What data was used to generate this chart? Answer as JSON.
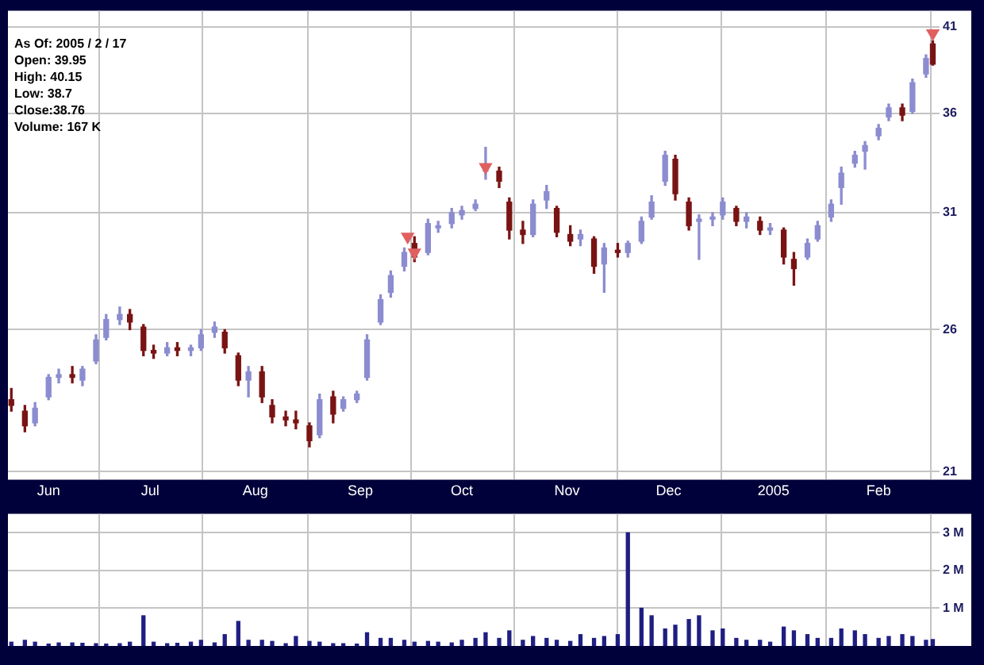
{
  "chart_data": [
    {
      "type": "candlestick",
      "log": true,
      "grid": true,
      "annotations": [
        "As Of: 2005 / 2 / 17",
        "Open: 39.95",
        "High: 40.15",
        "Low: 38.7",
        "Close:38.76",
        "Volume: 167 K"
      ],
      "xlim": [
        "2004-05-20",
        "2005-02-19"
      ],
      "xticks": [
        {
          "value": "2004-06-01",
          "label": "Jun"
        },
        {
          "value": "2004-07-01",
          "label": "Jul"
        },
        {
          "value": "2004-08-01",
          "label": "Aug"
        },
        {
          "value": "2004-09-01",
          "label": "Sep"
        },
        {
          "value": "2004-10-01",
          "label": "Oct"
        },
        {
          "value": "2004-11-01",
          "label": "Nov"
        },
        {
          "value": "2004-12-01",
          "label": "Dec"
        },
        {
          "value": "2005-01-01",
          "label": "2005"
        },
        {
          "value": "2005-02-01",
          "label": "Feb"
        }
      ],
      "ylim": [
        20.75,
        42
      ],
      "yticks": [
        21,
        26,
        31,
        36,
        41
      ],
      "x": [
        "2004-05-21",
        "2004-05-25",
        "2004-05-28",
        "2004-06-01",
        "2004-06-04",
        "2004-06-08",
        "2004-06-11",
        "2004-06-15",
        "2004-06-18",
        "2004-06-22",
        "2004-06-25",
        "2004-06-29",
        "2004-07-02",
        "2004-07-06",
        "2004-07-09",
        "2004-07-13",
        "2004-07-16",
        "2004-07-20",
        "2004-07-23",
        "2004-07-27",
        "2004-07-30",
        "2004-08-03",
        "2004-08-06",
        "2004-08-10",
        "2004-08-13",
        "2004-08-17",
        "2004-08-20",
        "2004-08-24",
        "2004-08-27",
        "2004-08-31",
        "2004-09-03",
        "2004-09-07",
        "2004-09-10",
        "2004-09-14",
        "2004-09-17",
        "2004-09-21",
        "2004-09-24",
        "2004-09-28",
        "2004-10-01",
        "2004-10-05",
        "2004-10-08",
        "2004-10-12",
        "2004-10-15",
        "2004-10-19",
        "2004-10-22",
        "2004-10-26",
        "2004-10-29",
        "2004-11-02",
        "2004-11-05",
        "2004-11-09",
        "2004-11-12",
        "2004-11-16",
        "2004-11-19",
        "2004-11-23",
        "2004-11-26",
        "2004-11-30",
        "2004-12-03",
        "2004-12-07",
        "2004-12-10",
        "2004-12-14",
        "2004-12-17",
        "2004-12-21",
        "2004-12-24",
        "2004-12-28",
        "2004-12-31",
        "2005-01-04",
        "2005-01-07",
        "2005-01-11",
        "2005-01-14",
        "2005-01-18",
        "2005-01-21",
        "2005-01-25",
        "2005-01-28",
        "2005-02-01",
        "2005-02-04",
        "2005-02-08",
        "2005-02-11",
        "2005-02-15",
        "2005-02-17"
      ],
      "ohlc": [
        [
          23.4,
          23.8,
          23.0,
          23.2
        ],
        [
          23.0,
          23.2,
          22.3,
          22.5
        ],
        [
          22.6,
          23.3,
          22.5,
          23.1
        ],
        [
          23.5,
          24.3,
          23.4,
          24.2
        ],
        [
          24.2,
          24.5,
          24.0,
          24.3
        ],
        [
          24.3,
          24.6,
          24.0,
          24.2
        ],
        [
          24.1,
          24.6,
          23.9,
          24.5
        ],
        [
          24.8,
          25.8,
          24.7,
          25.6
        ],
        [
          25.7,
          26.6,
          25.6,
          26.4
        ],
        [
          26.4,
          26.9,
          26.2,
          26.6
        ],
        [
          26.6,
          26.8,
          26.0,
          26.3
        ],
        [
          26.1,
          26.2,
          25.0,
          25.2
        ],
        [
          25.2,
          25.4,
          24.9,
          25.1
        ],
        [
          25.1,
          25.5,
          25.0,
          25.3
        ],
        [
          25.3,
          25.5,
          25.0,
          25.2
        ],
        [
          25.2,
          25.4,
          25.0,
          25.3
        ],
        [
          25.3,
          26.0,
          25.2,
          25.8
        ],
        [
          25.9,
          26.3,
          25.7,
          26.1
        ],
        [
          25.9,
          26.0,
          25.1,
          25.3
        ],
        [
          25.0,
          25.1,
          23.9,
          24.1
        ],
        [
          24.1,
          24.6,
          23.5,
          24.4
        ],
        [
          24.4,
          24.6,
          23.3,
          23.5
        ],
        [
          23.2,
          23.4,
          22.6,
          22.8
        ],
        [
          22.8,
          23.0,
          22.5,
          22.7
        ],
        [
          22.7,
          23.0,
          22.4,
          22.6
        ],
        [
          22.5,
          22.6,
          21.8,
          22.0
        ],
        [
          22.2,
          23.6,
          22.1,
          23.4
        ],
        [
          23.5,
          23.7,
          22.6,
          22.9
        ],
        [
          23.1,
          23.5,
          23.0,
          23.4
        ],
        [
          23.4,
          23.7,
          23.3,
          23.6
        ],
        [
          24.2,
          25.8,
          24.1,
          25.6
        ],
        [
          26.3,
          27.4,
          26.2,
          27.2
        ],
        [
          27.5,
          28.4,
          27.3,
          28.2
        ],
        [
          28.6,
          29.4,
          28.4,
          29.2
        ],
        [
          29.6,
          29.9,
          28.8,
          29.0
        ],
        [
          29.2,
          30.7,
          29.1,
          30.5
        ],
        [
          30.3,
          30.6,
          30.1,
          30.4
        ],
        [
          30.5,
          31.2,
          30.3,
          31.0
        ],
        [
          30.9,
          31.3,
          30.7,
          31.1
        ],
        [
          31.2,
          31.6,
          31.1,
          31.4
        ],
        [
          33.0,
          34.2,
          32.6,
          33.2
        ],
        [
          33.0,
          33.2,
          32.2,
          32.5
        ],
        [
          31.5,
          31.7,
          29.8,
          30.2
        ],
        [
          30.2,
          30.6,
          29.6,
          30.0
        ],
        [
          30.0,
          31.6,
          29.9,
          31.4
        ],
        [
          31.6,
          32.3,
          31.2,
          32.0
        ],
        [
          31.2,
          31.3,
          29.9,
          30.1
        ],
        [
          30.0,
          30.4,
          29.5,
          29.7
        ],
        [
          29.8,
          30.2,
          29.5,
          30.0
        ],
        [
          29.8,
          29.9,
          28.3,
          28.6
        ],
        [
          28.7,
          29.6,
          27.5,
          29.4
        ],
        [
          29.3,
          29.6,
          29.0,
          29.2
        ],
        [
          29.2,
          29.7,
          29.0,
          29.6
        ],
        [
          29.7,
          30.8,
          29.6,
          30.6
        ],
        [
          30.8,
          31.8,
          30.7,
          31.5
        ],
        [
          32.5,
          34.0,
          32.3,
          33.8
        ],
        [
          33.6,
          33.8,
          31.6,
          31.9
        ],
        [
          31.5,
          31.7,
          30.2,
          30.4
        ],
        [
          30.6,
          30.9,
          28.9,
          30.7
        ],
        [
          30.7,
          31.0,
          30.4,
          30.8
        ],
        [
          30.9,
          31.7,
          30.7,
          31.5
        ],
        [
          31.2,
          31.3,
          30.4,
          30.6
        ],
        [
          30.6,
          31.0,
          30.3,
          30.8
        ],
        [
          30.6,
          30.8,
          30.0,
          30.2
        ],
        [
          30.2,
          30.5,
          30.0,
          30.3
        ],
        [
          30.2,
          30.3,
          28.7,
          29.0
        ],
        [
          28.9,
          29.2,
          27.8,
          28.5
        ],
        [
          29.0,
          29.8,
          28.9,
          29.6
        ],
        [
          29.8,
          30.6,
          29.7,
          30.4
        ],
        [
          30.8,
          31.6,
          30.6,
          31.4
        ],
        [
          32.2,
          33.2,
          31.4,
          32.9
        ],
        [
          33.4,
          34.0,
          33.2,
          33.8
        ],
        [
          34.0,
          34.5,
          33.1,
          34.3
        ],
        [
          34.8,
          35.4,
          34.6,
          35.2
        ],
        [
          35.8,
          36.5,
          35.6,
          36.3
        ],
        [
          36.3,
          36.5,
          35.6,
          35.9
        ],
        [
          36.1,
          37.9,
          36.0,
          37.7
        ],
        [
          38.2,
          39.3,
          38.0,
          39.1
        ],
        [
          39.95,
          40.15,
          38.7,
          38.76
        ]
      ],
      "colors": [
        "#7a1414",
        "#7a1414",
        "#8c8cd0",
        "#8c8cd0",
        "#8c8cd0",
        "#7a1414",
        "#8c8cd0",
        "#8c8cd0",
        "#8c8cd0",
        "#8c8cd0",
        "#7a1414",
        "#7a1414",
        "#7a1414",
        "#8c8cd0",
        "#7a1414",
        "#8c8cd0",
        "#8c8cd0",
        "#8c8cd0",
        "#7a1414",
        "#7a1414",
        "#8c8cd0",
        "#7a1414",
        "#7a1414",
        "#7a1414",
        "#7a1414",
        "#7a1414",
        "#8c8cd0",
        "#7a1414",
        "#8c8cd0",
        "#8c8cd0",
        "#8c8cd0",
        "#8c8cd0",
        "#8c8cd0",
        "#8c8cd0",
        "#7a1414",
        "#8c8cd0",
        "#8c8cd0",
        "#8c8cd0",
        "#8c8cd0",
        "#8c8cd0",
        "#8c8cd0",
        "#7a1414",
        "#7a1414",
        "#7a1414",
        "#8c8cd0",
        "#8c8cd0",
        "#7a1414",
        "#7a1414",
        "#8c8cd0",
        "#7a1414",
        "#8c8cd0",
        "#7a1414",
        "#8c8cd0",
        "#8c8cd0",
        "#8c8cd0",
        "#8c8cd0",
        "#7a1414",
        "#7a1414",
        "#8c8cd0",
        "#8c8cd0",
        "#8c8cd0",
        "#7a1414",
        "#8c8cd0",
        "#7a1414",
        "#8c8cd0",
        "#7a1414",
        "#7a1414",
        "#8c8cd0",
        "#8c8cd0",
        "#8c8cd0",
        "#8c8cd0",
        "#8c8cd0",
        "#8c8cd0",
        "#8c8cd0",
        "#8c8cd0",
        "#7a1414",
        "#8c8cd0",
        "#8c8cd0",
        "#7a1414"
      ],
      "series": [
        {
          "type": "scatter",
          "color": "#e06060",
          "marker": "triangle",
          "x": [
            "2004-09-15",
            "2004-09-17",
            "2004-10-08",
            "2005-02-17"
          ],
          "values": [
            29.9,
            29.2,
            33.2,
            40.6
          ]
        }
      ]
    },
    {
      "type": "bar",
      "grid": true,
      "tick_labels": "y",
      "color": "#1e1e82",
      "xlim": [
        "2004-05-20",
        "2005-02-19"
      ],
      "xticks": [
        {
          "value": "2004-06-01",
          "label": null
        },
        {
          "value": "2004-07-01",
          "label": null
        },
        {
          "value": "2004-08-01",
          "label": null
        },
        {
          "value": "2004-09-01",
          "label": null
        },
        {
          "value": "2004-10-01",
          "label": null
        },
        {
          "value": "2004-11-01",
          "label": null
        },
        {
          "value": "2004-12-01",
          "label": null
        },
        {
          "value": "2005-01-01",
          "label": null
        },
        {
          "value": "2005-02-01",
          "label": null
        }
      ],
      "ylim": [
        0,
        3.5
      ],
      "yticks": [
        {
          "value": 1,
          "label": "1 M"
        },
        {
          "value": 2,
          "label": "2 M"
        },
        {
          "value": 3,
          "label": "3 M"
        }
      ],
      "x": [
        "2004-05-21",
        "2004-05-25",
        "2004-05-28",
        "2004-06-01",
        "2004-06-04",
        "2004-06-08",
        "2004-06-11",
        "2004-06-15",
        "2004-06-18",
        "2004-06-22",
        "2004-06-25",
        "2004-06-29",
        "2004-07-02",
        "2004-07-06",
        "2004-07-09",
        "2004-07-13",
        "2004-07-16",
        "2004-07-20",
        "2004-07-23",
        "2004-07-27",
        "2004-07-30",
        "2004-08-03",
        "2004-08-06",
        "2004-08-10",
        "2004-08-13",
        "2004-08-17",
        "2004-08-20",
        "2004-08-24",
        "2004-08-27",
        "2004-08-31",
        "2004-09-03",
        "2004-09-07",
        "2004-09-10",
        "2004-09-14",
        "2004-09-17",
        "2004-09-21",
        "2004-09-24",
        "2004-09-28",
        "2004-10-01",
        "2004-10-05",
        "2004-10-08",
        "2004-10-12",
        "2004-10-15",
        "2004-10-19",
        "2004-10-22",
        "2004-10-26",
        "2004-10-29",
        "2004-11-02",
        "2004-11-05",
        "2004-11-09",
        "2004-11-12",
        "2004-11-16",
        "2004-11-19",
        "2004-11-23",
        "2004-11-26",
        "2004-11-30",
        "2004-12-03",
        "2004-12-07",
        "2004-12-10",
        "2004-12-14",
        "2004-12-17",
        "2004-12-21",
        "2004-12-24",
        "2004-12-28",
        "2004-12-31",
        "2005-01-04",
        "2005-01-07",
        "2005-01-11",
        "2005-01-14",
        "2005-01-18",
        "2005-01-21",
        "2005-01-25",
        "2005-01-28",
        "2005-02-01",
        "2005-02-04",
        "2005-02-08",
        "2005-02-11",
        "2005-02-15",
        "2005-02-17"
      ],
      "values": [
        0.1,
        0.15,
        0.1,
        0.05,
        0.08,
        0.08,
        0.07,
        0.06,
        0.05,
        0.06,
        0.1,
        0.8,
        0.1,
        0.06,
        0.07,
        0.1,
        0.15,
        0.08,
        0.3,
        0.65,
        0.15,
        0.15,
        0.12,
        0.06,
        0.25,
        0.12,
        0.1,
        0.06,
        0.06,
        0.05,
        0.35,
        0.2,
        0.2,
        0.15,
        0.1,
        0.12,
        0.1,
        0.08,
        0.15,
        0.2,
        0.35,
        0.2,
        0.4,
        0.15,
        0.25,
        0.2,
        0.15,
        0.12,
        0.3,
        0.2,
        0.25,
        0.3,
        3.0,
        1.0,
        0.8,
        0.45,
        0.55,
        0.7,
        0.8,
        0.4,
        0.45,
        0.2,
        0.15,
        0.15,
        0.1,
        0.5,
        0.4,
        0.3,
        0.2,
        0.2,
        0.45,
        0.4,
        0.3,
        0.2,
        0.25,
        0.3,
        0.25,
        0.15,
        0.17
      ]
    }
  ]
}
